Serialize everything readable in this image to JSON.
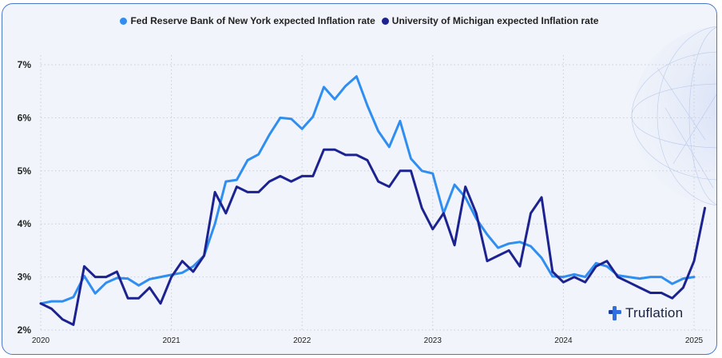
{
  "colors": {
    "nyfed": "#2f8ef0",
    "umich": "#1c2391",
    "grid": "#c9ced8",
    "axis_text": "#222222"
  },
  "legend": [
    {
      "label": "Fed Reserve Bank of New York expected Inflation rate",
      "color": "#2f8ef0"
    },
    {
      "label": "University of Michigan expected Inflation rate",
      "color": "#1c2391"
    }
  ],
  "logo": {
    "text": "Truflation",
    "icon": "truflation-logo-icon"
  },
  "decor": {
    "icon": "globe-network-icon"
  },
  "chart_data": {
    "type": "line",
    "x_unit": "month",
    "x_start": "2020-01",
    "ylim": [
      2,
      7.3
    ],
    "yticks": [
      2,
      3,
      4,
      5,
      6,
      7
    ],
    "ytick_labels": [
      "2%",
      "3%",
      "4%",
      "5%",
      "6%",
      "7%"
    ],
    "xticks": [
      "2020",
      "2021",
      "2022",
      "2023",
      "2024",
      "2025"
    ],
    "grid": true,
    "legend_position": "top",
    "series": [
      {
        "name": "Fed Reserve Bank of New York expected Inflation rate",
        "color": "#2f8ef0",
        "values": [
          2.5,
          2.54,
          2.54,
          2.62,
          3.02,
          2.69,
          2.89,
          2.98,
          2.97,
          2.84,
          2.96,
          3.0,
          3.04,
          3.08,
          3.2,
          3.4,
          4.0,
          4.8,
          4.83,
          5.2,
          5.31,
          5.68,
          6.0,
          5.98,
          5.79,
          6.02,
          6.58,
          6.35,
          6.6,
          6.78,
          6.23,
          5.75,
          5.45,
          5.94,
          5.23,
          5.0,
          4.95,
          4.2,
          4.74,
          4.5,
          4.1,
          3.8,
          3.55,
          3.63,
          3.66,
          3.58,
          3.36,
          3.01,
          3.0,
          3.05,
          3.0,
          3.26,
          3.2,
          3.03,
          3.0,
          2.97,
          3.0,
          3.0,
          2.87,
          2.97,
          3.0
        ]
      },
      {
        "name": "University of Michigan expected Inflation rate",
        "color": "#1c2391",
        "values": [
          2.5,
          2.4,
          2.2,
          2.1,
          3.2,
          3.0,
          3.0,
          3.1,
          2.6,
          2.6,
          2.8,
          2.5,
          3.0,
          3.3,
          3.1,
          3.4,
          4.6,
          4.2,
          4.7,
          4.6,
          4.6,
          4.8,
          4.9,
          4.8,
          4.9,
          4.9,
          5.4,
          5.4,
          5.3,
          5.3,
          5.2,
          4.8,
          4.7,
          5.0,
          5.0,
          4.3,
          3.9,
          4.2,
          3.6,
          4.7,
          4.2,
          3.3,
          3.4,
          3.5,
          3.2,
          4.2,
          4.5,
          3.1,
          2.9,
          3.0,
          2.9,
          3.2,
          3.3,
          3.0,
          2.9,
          2.8,
          2.7,
          2.7,
          2.6,
          2.8,
          3.3,
          4.3
        ]
      }
    ]
  }
}
